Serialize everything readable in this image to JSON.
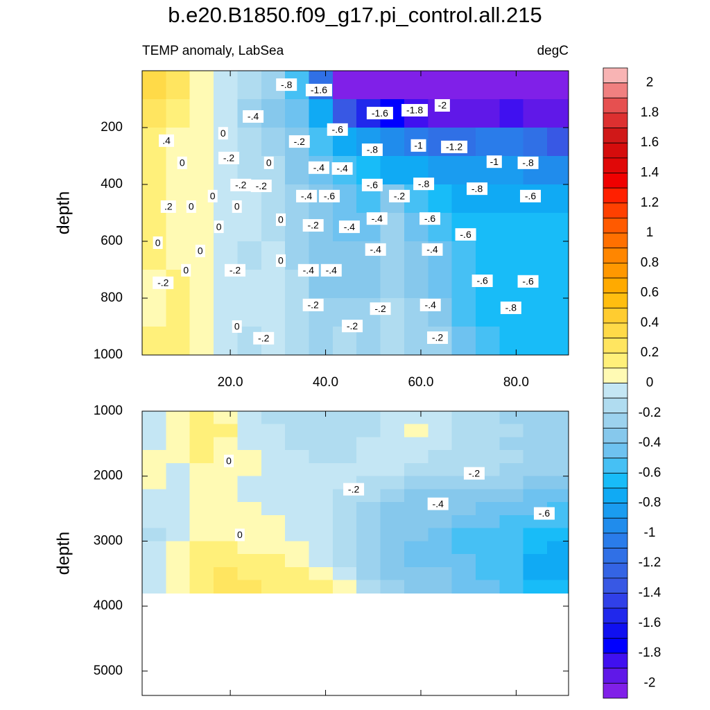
{
  "chart_data": {
    "type": "contour",
    "title": "b.e20.B1850.f09_g17.pi_control.all.215",
    "subtitle_left": "TEMP anomaly, LabSea",
    "subtitle_right": "degC",
    "xlim": [
      1.5,
      91
    ],
    "xticks": [
      {
        "value": 20,
        "label": "20.0"
      },
      {
        "value": 40,
        "label": "40.0"
      },
      {
        "value": 60,
        "label": "60.0"
      },
      {
        "value": 80,
        "label": "80.0"
      }
    ],
    "colorbar": {
      "levels": [
        2,
        1.9,
        1.8,
        1.7,
        1.6,
        1.5,
        1.4,
        1.3,
        1.2,
        1.1,
        1,
        0.9,
        0.8,
        0.7,
        0.6,
        0.5,
        0.4,
        0.3,
        0.2,
        0.1,
        0,
        -0.1,
        -0.2,
        -0.3,
        -0.4,
        -0.5,
        -0.6,
        -0.7,
        -0.8,
        -0.9,
        -1,
        -1.1,
        -1.2,
        -1.3,
        -1.4,
        -1.5,
        -1.6,
        -1.7,
        -1.8,
        -1.9,
        -2
      ],
      "colors": [
        "#f8b4b4",
        "#f08080",
        "#e65050",
        "#dd3030",
        "#d01818",
        "#d50c0c",
        "#e00808",
        "#f00000",
        "#ff2000",
        "#ff4000",
        "#ff5a00",
        "#ff7000",
        "#ff8600",
        "#ff9800",
        "#ffaa00",
        "#ffbe10",
        "#ffcc30",
        "#ffda48",
        "#ffe560",
        "#fff07a",
        "#fffab4",
        "#c4e6f4",
        "#b0dcf0",
        "#9cd2ee",
        "#86c8ec",
        "#6ec2f0",
        "#46c0f4",
        "#18bcf8",
        "#10aaf4",
        "#1a9cf0",
        "#208cec",
        "#2a7cea",
        "#3070e6",
        "#3464e4",
        "#3858e4",
        "#3040e8",
        "#2028ec",
        "#1010f0",
        "#0000ff",
        "#4010f0",
        "#6018e8",
        "#8020e8"
      ],
      "ticks": [
        2,
        1.8,
        1.6,
        1.4,
        1.2,
        1,
        0.8,
        0.6,
        0.4,
        0.2,
        0,
        -0.2,
        -0.4,
        -0.6,
        -0.8,
        -1,
        -1.2,
        -1.4,
        -1.6,
        -1.8,
        -2
      ]
    },
    "panels": [
      {
        "y_label": "depth",
        "ylim": [
          0,
          1000
        ],
        "yticks": [
          200,
          400,
          600,
          800,
          1000
        ],
        "xtick_labels": true,
        "x": [
          4,
          9,
          14,
          19,
          24,
          29,
          34,
          39,
          44,
          49,
          54,
          59,
          64,
          69,
          74,
          79,
          84,
          89
        ],
        "depth": [
          50,
          150,
          250,
          350,
          450,
          550,
          650,
          750,
          850,
          950
        ],
        "values": [
          [
            0.3,
            0.2,
            0,
            -0.1,
            -0.2,
            -0.3,
            -0.6,
            -1.2,
            -2.1,
            -2.1,
            -2.1,
            -2.1,
            -2.1,
            -2.1,
            -2.1,
            -2.1,
            -2.1,
            -2.1
          ],
          [
            0.2,
            0.1,
            0,
            -0.1,
            -0.3,
            -0.4,
            -0.5,
            -0.8,
            -1.4,
            -1.6,
            -1.8,
            -1.9,
            -2,
            -2,
            -2,
            -1.9,
            -2,
            -2
          ],
          [
            0.1,
            0,
            0,
            -0.1,
            -0.2,
            -0.3,
            -0.4,
            -0.6,
            -0.8,
            -0.9,
            -1,
            -1.1,
            -1.2,
            -1.2,
            -1.1,
            -1.1,
            -1.2,
            -1.4
          ],
          [
            0.1,
            0,
            0,
            -0.1,
            -0.2,
            -0.2,
            -0.4,
            -0.5,
            -0.6,
            -0.7,
            -0.8,
            -0.8,
            -0.9,
            -0.9,
            -0.9,
            -0.9,
            -1,
            -1
          ],
          [
            0.1,
            0,
            0,
            -0.1,
            -0.1,
            -0.2,
            -0.3,
            -0.4,
            -0.5,
            -0.6,
            -0.4,
            -0.6,
            -0.7,
            -0.8,
            -0.8,
            -0.8,
            -0.8,
            -0.8
          ],
          [
            0.1,
            0,
            0,
            -0.1,
            -0.1,
            -0.2,
            -0.3,
            -0.4,
            -0.5,
            -0.5,
            -0.3,
            -0.5,
            -0.6,
            -0.7,
            -0.7,
            -0.7,
            -0.7,
            -0.7
          ],
          [
            0.1,
            0,
            0,
            -0.1,
            -0.2,
            -0.1,
            -0.3,
            -0.4,
            -0.4,
            -0.4,
            -0.3,
            -0.4,
            -0.5,
            -0.6,
            -0.7,
            -0.7,
            -0.7,
            -0.7
          ],
          [
            0,
            0.1,
            0,
            -0.1,
            -0.1,
            -0.1,
            -0.2,
            -0.4,
            -0.4,
            -0.4,
            -0.3,
            -0.4,
            -0.5,
            -0.6,
            -0.7,
            -0.7,
            -0.7,
            -0.7
          ],
          [
            0,
            0.1,
            0,
            -0.1,
            -0.1,
            -0.1,
            -0.2,
            -0.3,
            -0.3,
            -0.3,
            -0.2,
            -0.3,
            -0.4,
            -0.6,
            -0.7,
            -0.7,
            -0.7,
            -0.7
          ],
          [
            0.1,
            0.1,
            0,
            -0.1,
            -0.2,
            -0.1,
            -0.2,
            -0.3,
            -0.2,
            -0.3,
            -0.2,
            -0.3,
            -0.3,
            -0.5,
            -0.6,
            -0.7,
            -0.7,
            -0.7
          ]
        ],
        "contour_labels": [
          {
            "text": "-.8",
            "x": 31.8,
            "depth": 49
          },
          {
            "text": "-1.6",
            "x": 38.6,
            "depth": 68
          },
          {
            "text": "-1.6",
            "x": 51.4,
            "depth": 149
          },
          {
            "text": "-1.8",
            "x": 58.7,
            "depth": 139
          },
          {
            "text": "-2",
            "x": 64.5,
            "depth": 122
          },
          {
            "text": "-.4",
            "x": 24.8,
            "depth": 161
          },
          {
            "text": "-.6",
            "x": 42.5,
            "depth": 207
          },
          {
            "text": "-.8",
            "x": 49.8,
            "depth": 278
          },
          {
            "text": "-1",
            "x": 59.5,
            "depth": 263
          },
          {
            "text": "-1.2",
            "x": 67,
            "depth": 268
          },
          {
            "text": "-1",
            "x": 75.4,
            "depth": 320
          },
          {
            "text": "-.8",
            "x": 82.5,
            "depth": 324
          },
          {
            "text": ".4",
            "x": 6.6,
            "depth": 246
          },
          {
            "text": "0",
            "x": 18.5,
            "depth": 220
          },
          {
            "text": "-.2",
            "x": 34.5,
            "depth": 249
          },
          {
            "text": "0",
            "x": 9.9,
            "depth": 324
          },
          {
            "text": "-.2",
            "x": 19.7,
            "depth": 307
          },
          {
            "text": "0",
            "x": 28.1,
            "depth": 324
          },
          {
            "text": "-.4",
            "x": 38.6,
            "depth": 341
          },
          {
            "text": "-.4",
            "x": 43.5,
            "depth": 344
          },
          {
            "text": "-.2",
            "x": 22.2,
            "depth": 402
          },
          {
            "text": "-.2",
            "x": 26.5,
            "depth": 405
          },
          {
            "text": "-.6",
            "x": 49.8,
            "depth": 402
          },
          {
            "text": "-.8",
            "x": 60.6,
            "depth": 398
          },
          {
            "text": "-.8",
            "x": 71.8,
            "depth": 415
          },
          {
            "text": "0",
            "x": 16.3,
            "depth": 441
          },
          {
            "text": "-.4",
            "x": 36,
            "depth": 441
          },
          {
            "text": "-.6",
            "x": 40.8,
            "depth": 441
          },
          {
            "text": "-.2",
            "x": 55.5,
            "depth": 441
          },
          {
            "text": "-.6",
            "x": 83,
            "depth": 441
          },
          {
            "text": ".2",
            "x": 7,
            "depth": 478
          },
          {
            "text": "0",
            "x": 11.8,
            "depth": 478
          },
          {
            "text": "0",
            "x": 21.4,
            "depth": 478
          },
          {
            "text": "0",
            "x": 30.6,
            "depth": 524
          },
          {
            "text": "-.2",
            "x": 37.4,
            "depth": 544
          },
          {
            "text": "-.4",
            "x": 45,
            "depth": 549
          },
          {
            "text": "-.4",
            "x": 50.8,
            "depth": 520
          },
          {
            "text": "-.6",
            "x": 61.9,
            "depth": 520
          },
          {
            "text": "0",
            "x": 17.6,
            "depth": 549
          },
          {
            "text": "-.6",
            "x": 69.4,
            "depth": 576
          },
          {
            "text": "0",
            "x": 4.8,
            "depth": 605
          },
          {
            "text": "0",
            "x": 13.7,
            "depth": 634
          },
          {
            "text": "-.4",
            "x": 50.5,
            "depth": 629
          },
          {
            "text": "-.4",
            "x": 62.4,
            "depth": 629
          },
          {
            "text": "0",
            "x": 30.6,
            "depth": 668
          },
          {
            "text": "0",
            "x": 10.7,
            "depth": 702
          },
          {
            "text": "-.2",
            "x": 21,
            "depth": 702
          },
          {
            "text": "-.4",
            "x": 36.4,
            "depth": 702
          },
          {
            "text": "-.4",
            "x": 41.2,
            "depth": 702
          },
          {
            "text": "-.2",
            "x": 5.9,
            "depth": 746
          },
          {
            "text": "-.6",
            "x": 72.9,
            "depth": 739
          },
          {
            "text": "-.6",
            "x": 82.5,
            "depth": 741
          },
          {
            "text": "-.2",
            "x": 37.4,
            "depth": 824
          },
          {
            "text": "-.2",
            "x": 51.5,
            "depth": 837
          },
          {
            "text": "-.4",
            "x": 62,
            "depth": 824
          },
          {
            "text": "-.8",
            "x": 78.9,
            "depth": 834
          },
          {
            "text": "-.2",
            "x": 45.6,
            "depth": 898
          },
          {
            "text": "0",
            "x": 21.4,
            "depth": 900
          },
          {
            "text": "-.2",
            "x": 27,
            "depth": 941
          },
          {
            "text": "-.2",
            "x": 63.5,
            "depth": 939
          }
        ]
      },
      {
        "y_label": "depth",
        "ylim": [
          1000,
          5375
        ],
        "yticks": [
          1000,
          2000,
          3000,
          4000,
          5000
        ],
        "xtick_labels": false,
        "x": [
          4,
          9,
          14,
          19,
          24,
          29,
          34,
          39,
          44,
          49,
          54,
          59,
          64,
          69,
          74,
          79,
          84,
          89
        ],
        "depth": [
          1100,
          1300,
          1500,
          1700,
          1900,
          2100,
          2300,
          2500,
          2700,
          2900,
          3100,
          3300,
          3500,
          3700
        ],
        "values": [
          [
            -0.1,
            0,
            0.1,
            0,
            -0.1,
            -0.2,
            -0.2,
            -0.2,
            -0.2,
            -0.2,
            -0.1,
            -0.1,
            -0.1,
            -0.2,
            -0.2,
            -0.3,
            -0.3,
            -0.3
          ],
          [
            -0.1,
            0,
            0.1,
            0.1,
            -0.1,
            -0.1,
            -0.2,
            -0.2,
            -0.2,
            -0.2,
            -0.1,
            0,
            -0.1,
            -0.2,
            -0.2,
            -0.2,
            -0.3,
            -0.3
          ],
          [
            -0.1,
            0,
            0.1,
            0,
            -0.1,
            -0.1,
            -0.2,
            -0.2,
            -0.2,
            -0.1,
            -0.1,
            -0.1,
            -0.1,
            -0.2,
            -0.2,
            -0.3,
            -0.3,
            -0.3
          ],
          [
            0,
            0,
            0.1,
            0,
            0,
            -0.1,
            -0.1,
            -0.2,
            -0.2,
            -0.1,
            -0.1,
            -0.1,
            -0.2,
            -0.2,
            -0.2,
            -0.2,
            -0.3,
            -0.3
          ],
          [
            0,
            -0.1,
            0,
            0,
            0,
            -0.1,
            -0.1,
            -0.1,
            -0.1,
            -0.1,
            -0.1,
            -0.2,
            -0.2,
            -0.2,
            -0.2,
            -0.3,
            -0.3,
            -0.3
          ],
          [
            0,
            -0.1,
            0,
            0,
            -0.1,
            -0.1,
            -0.1,
            -0.1,
            -0.1,
            -0.2,
            -0.2,
            -0.3,
            -0.3,
            -0.3,
            -0.3,
            -0.3,
            -0.4,
            -0.4
          ],
          [
            -0.1,
            -0.1,
            0,
            0,
            -0.1,
            -0.1,
            -0.1,
            -0.1,
            -0.2,
            -0.2,
            -0.3,
            -0.4,
            -0.4,
            -0.4,
            -0.4,
            -0.4,
            -0.5,
            -0.5
          ],
          [
            -0.1,
            -0.1,
            0,
            0,
            0,
            -0.1,
            -0.1,
            -0.1,
            -0.2,
            -0.3,
            -0.4,
            -0.4,
            -0.4,
            -0.4,
            -0.5,
            -0.5,
            -0.5,
            -0.6
          ],
          [
            -0.1,
            -0.1,
            0,
            0,
            0,
            0,
            -0.1,
            -0.1,
            -0.2,
            -0.3,
            -0.4,
            -0.4,
            -0.4,
            -0.5,
            -0.5,
            -0.6,
            -0.6,
            -0.6
          ],
          [
            -0.2,
            -0.1,
            0,
            0,
            0,
            0,
            -0.1,
            -0.1,
            -0.2,
            -0.3,
            -0.4,
            -0.4,
            -0.5,
            -0.6,
            -0.6,
            -0.6,
            -0.7,
            -0.7
          ],
          [
            -0.1,
            0,
            0.1,
            0.1,
            0,
            0,
            0,
            -0.1,
            -0.2,
            -0.3,
            -0.4,
            -0.5,
            -0.5,
            -0.6,
            -0.6,
            -0.6,
            -0.7,
            -0.8
          ],
          [
            -0.1,
            0,
            0.1,
            0.1,
            0.1,
            0.1,
            0,
            -0.1,
            -0.2,
            -0.3,
            -0.4,
            -0.5,
            -0.5,
            -0.5,
            -0.6,
            -0.6,
            -0.8,
            -0.8
          ],
          [
            -0.1,
            0,
            0.1,
            0.2,
            0.1,
            0.1,
            0.1,
            0,
            -0.1,
            -0.3,
            -0.4,
            -0.4,
            -0.4,
            -0.5,
            -0.6,
            -0.6,
            -0.8,
            -0.8
          ],
          [
            -0.1,
            0,
            0.1,
            0.2,
            0.2,
            0.1,
            0.1,
            0.1,
            0,
            -0.2,
            -0.3,
            -0.4,
            -0.4,
            -0.5,
            -0.5,
            -0.6,
            -0.7,
            -0.7
          ]
        ],
        "contour_labels": [
          {
            "text": "0",
            "x": 19.7,
            "depth": 1766
          },
          {
            "text": "-.2",
            "x": 45.9,
            "depth": 2202
          },
          {
            "text": "-.2",
            "x": 71.2,
            "depth": 1957
          },
          {
            "text": "-.4",
            "x": 63.6,
            "depth": 2426
          },
          {
            "text": "-.6",
            "x": 85.9,
            "depth": 2574
          },
          {
            "text": "0",
            "x": 22,
            "depth": 2904
          }
        ]
      }
    ]
  }
}
